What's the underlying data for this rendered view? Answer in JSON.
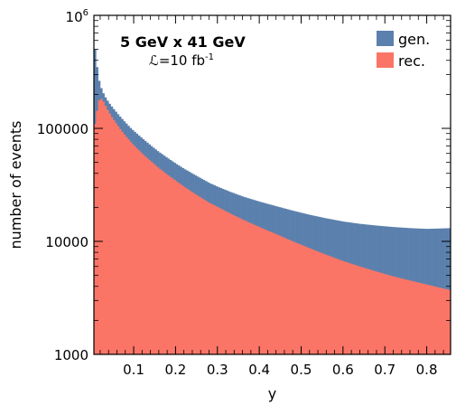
{
  "chart_data": {
    "type": "histogram-step",
    "x_range": [
      0.005,
      0.857
    ],
    "y_range": [
      1000,
      1000000
    ],
    "y_scale": "log",
    "xlabel": "y",
    "ylabel": "number of events",
    "x_ticks": [
      {
        "value": 0.1,
        "label": "0.1"
      },
      {
        "value": 0.2,
        "label": "0.2"
      },
      {
        "value": 0.3,
        "label": "0.3"
      },
      {
        "value": 0.4,
        "label": "0.4"
      },
      {
        "value": 0.5,
        "label": "0.5"
      },
      {
        "value": 0.6,
        "label": "0.6"
      },
      {
        "value": 0.7,
        "label": "0.7"
      },
      {
        "value": 0.8,
        "label": "0.8"
      }
    ],
    "y_ticks": [
      {
        "value": 1000,
        "label": "1000"
      },
      {
        "value": 10000,
        "label": "10000"
      },
      {
        "value": 100000,
        "label": "100000"
      }
    ],
    "y_top_tick": {
      "value": 1000000,
      "base": "10",
      "exponent": "6"
    },
    "annotation": {
      "line1": "5 GeV x 41 GeV",
      "lumi_symbol": "ℒ",
      "lumi_text": "=10 fb",
      "lumi_exp": "-1"
    },
    "legend": {
      "placement": "top-right"
    },
    "series": [
      {
        "name": "gen.",
        "color": "#5b80ad",
        "points": [
          [
            0.005,
            600000
          ],
          [
            0.01,
            420000
          ],
          [
            0.015,
            290000
          ],
          [
            0.02,
            240000
          ],
          [
            0.025,
            215000
          ],
          [
            0.03,
            195000
          ],
          [
            0.04,
            170000
          ],
          [
            0.05,
            152000
          ],
          [
            0.06,
            137000
          ],
          [
            0.07,
            124000
          ],
          [
            0.08,
            113000
          ],
          [
            0.09,
            103000
          ],
          [
            0.1,
            95000
          ],
          [
            0.12,
            82000
          ],
          [
            0.14,
            71000
          ],
          [
            0.16,
            62000
          ],
          [
            0.18,
            55000
          ],
          [
            0.2,
            49000
          ],
          [
            0.22,
            44000
          ],
          [
            0.25,
            38000
          ],
          [
            0.28,
            33000
          ],
          [
            0.3,
            30500
          ],
          [
            0.33,
            27500
          ],
          [
            0.36,
            25000
          ],
          [
            0.4,
            22500
          ],
          [
            0.44,
            20500
          ],
          [
            0.48,
            18700
          ],
          [
            0.52,
            17200
          ],
          [
            0.56,
            16000
          ],
          [
            0.6,
            15000
          ],
          [
            0.64,
            14300
          ],
          [
            0.68,
            13800
          ],
          [
            0.72,
            13400
          ],
          [
            0.76,
            13100
          ],
          [
            0.8,
            12900
          ],
          [
            0.83,
            13000
          ],
          [
            0.857,
            13100
          ]
        ]
      },
      {
        "name": "rec.",
        "color": "#fb7567",
        "points": [
          [
            0.005,
            100000
          ],
          [
            0.01,
            120000
          ],
          [
            0.015,
            170000
          ],
          [
            0.02,
            185000
          ],
          [
            0.025,
            180000
          ],
          [
            0.03,
            165000
          ],
          [
            0.04,
            140000
          ],
          [
            0.05,
            122000
          ],
          [
            0.06,
            108000
          ],
          [
            0.07,
            96000
          ],
          [
            0.08,
            86000
          ],
          [
            0.09,
            78000
          ],
          [
            0.1,
            71000
          ],
          [
            0.12,
            60000
          ],
          [
            0.14,
            51500
          ],
          [
            0.16,
            44500
          ],
          [
            0.18,
            39000
          ],
          [
            0.2,
            34500
          ],
          [
            0.22,
            30500
          ],
          [
            0.25,
            25800
          ],
          [
            0.28,
            22000
          ],
          [
            0.3,
            20200
          ],
          [
            0.33,
            17700
          ],
          [
            0.36,
            15600
          ],
          [
            0.4,
            13400
          ],
          [
            0.44,
            11600
          ],
          [
            0.48,
            10000
          ],
          [
            0.52,
            8700
          ],
          [
            0.56,
            7600
          ],
          [
            0.6,
            6700
          ],
          [
            0.64,
            6000
          ],
          [
            0.68,
            5400
          ],
          [
            0.72,
            4900
          ],
          [
            0.76,
            4500
          ],
          [
            0.8,
            4150
          ],
          [
            0.83,
            3900
          ],
          [
            0.857,
            3700
          ]
        ]
      }
    ]
  }
}
